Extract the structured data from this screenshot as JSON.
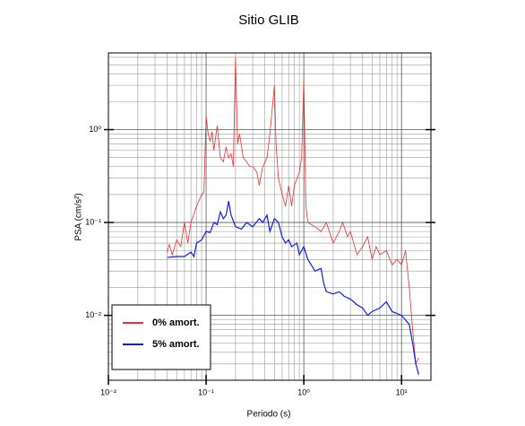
{
  "chart_data": {
    "type": "line",
    "title": "Sitio GLIB",
    "xlabel": "Periodo (s)",
    "ylabel": "PSA (cm/s²)",
    "xscale": "log",
    "yscale": "log",
    "grid": true,
    "legend": "lower left",
    "xlim": [
      0.01,
      20
    ],
    "ylim": [
      0.002,
      6.7
    ],
    "xticks": [
      {
        "value": 0.01,
        "label": "10⁻²"
      },
      {
        "value": 0.1,
        "label": "10⁻¹"
      },
      {
        "value": 1,
        "label": "10⁰"
      },
      {
        "value": 10,
        "label": "10¹"
      }
    ],
    "yticks": [
      {
        "value": 0.01,
        "label": "10⁻²"
      },
      {
        "value": 0.1,
        "label": "10⁻¹"
      },
      {
        "value": 1,
        "label": "10⁰"
      }
    ],
    "series": [
      {
        "name": "0% amort.",
        "color": "#e83030",
        "x": [
          0.04,
          0.042,
          0.045,
          0.05,
          0.055,
          0.06,
          0.065,
          0.07,
          0.08,
          0.09,
          0.095,
          0.1,
          0.105,
          0.11,
          0.115,
          0.12,
          0.13,
          0.14,
          0.15,
          0.16,
          0.17,
          0.18,
          0.19,
          0.2,
          0.21,
          0.22,
          0.24,
          0.26,
          0.28,
          0.3,
          0.33,
          0.35,
          0.38,
          0.42,
          0.45,
          0.5,
          0.52,
          0.55,
          0.6,
          0.65,
          0.7,
          0.75,
          0.8,
          0.9,
          0.95,
          1.0,
          1.05,
          1.1,
          1.3,
          1.5,
          1.7,
          2.0,
          2.3,
          2.5,
          2.8,
          3.0,
          3.5,
          4,
          4.5,
          5,
          5.5,
          6,
          7,
          8,
          9,
          10,
          11,
          12,
          13,
          14,
          15
        ],
        "values": [
          0.047,
          0.058,
          0.045,
          0.065,
          0.055,
          0.1,
          0.06,
          0.1,
          0.15,
          0.2,
          0.21,
          1.4,
          0.9,
          0.75,
          0.95,
          0.6,
          1.1,
          0.5,
          0.45,
          0.65,
          0.5,
          0.55,
          0.4,
          6.0,
          0.7,
          0.9,
          0.5,
          0.45,
          0.4,
          0.4,
          0.35,
          0.25,
          0.4,
          0.5,
          0.9,
          3.0,
          0.7,
          0.3,
          0.2,
          0.15,
          0.25,
          0.15,
          0.25,
          0.35,
          0.5,
          3.5,
          0.15,
          0.1,
          0.09,
          0.08,
          0.1,
          0.06,
          0.08,
          0.1,
          0.07,
          0.08,
          0.045,
          0.055,
          0.07,
          0.04,
          0.055,
          0.045,
          0.05,
          0.035,
          0.04,
          0.035,
          0.05,
          0.02,
          0.007,
          0.003,
          0.0035
        ]
      },
      {
        "name": "5% amort.",
        "color": "#1020e0",
        "x": [
          0.04,
          0.05,
          0.06,
          0.07,
          0.075,
          0.08,
          0.09,
          0.1,
          0.11,
          0.12,
          0.13,
          0.14,
          0.15,
          0.16,
          0.17,
          0.18,
          0.2,
          0.23,
          0.26,
          0.3,
          0.35,
          0.38,
          0.42,
          0.45,
          0.5,
          0.55,
          0.6,
          0.65,
          0.7,
          0.75,
          0.85,
          0.9,
          1.0,
          1.1,
          1.3,
          1.5,
          1.6,
          1.7,
          2.0,
          2.3,
          2.6,
          3.0,
          3.5,
          4.0,
          4.5,
          5,
          6,
          7,
          8,
          10,
          12,
          13,
          14,
          15
        ],
        "values": [
          0.042,
          0.043,
          0.043,
          0.048,
          0.043,
          0.06,
          0.065,
          0.08,
          0.078,
          0.1,
          0.095,
          0.13,
          0.11,
          0.12,
          0.17,
          0.12,
          0.09,
          0.085,
          0.1,
          0.09,
          0.11,
          0.1,
          0.12,
          0.08,
          0.11,
          0.1,
          0.07,
          0.06,
          0.065,
          0.055,
          0.06,
          0.045,
          0.055,
          0.04,
          0.03,
          0.032,
          0.022,
          0.018,
          0.017,
          0.018,
          0.016,
          0.015,
          0.013,
          0.012,
          0.01,
          0.011,
          0.012,
          0.014,
          0.011,
          0.01,
          0.008,
          0.005,
          0.003,
          0.0023
        ]
      }
    ]
  }
}
